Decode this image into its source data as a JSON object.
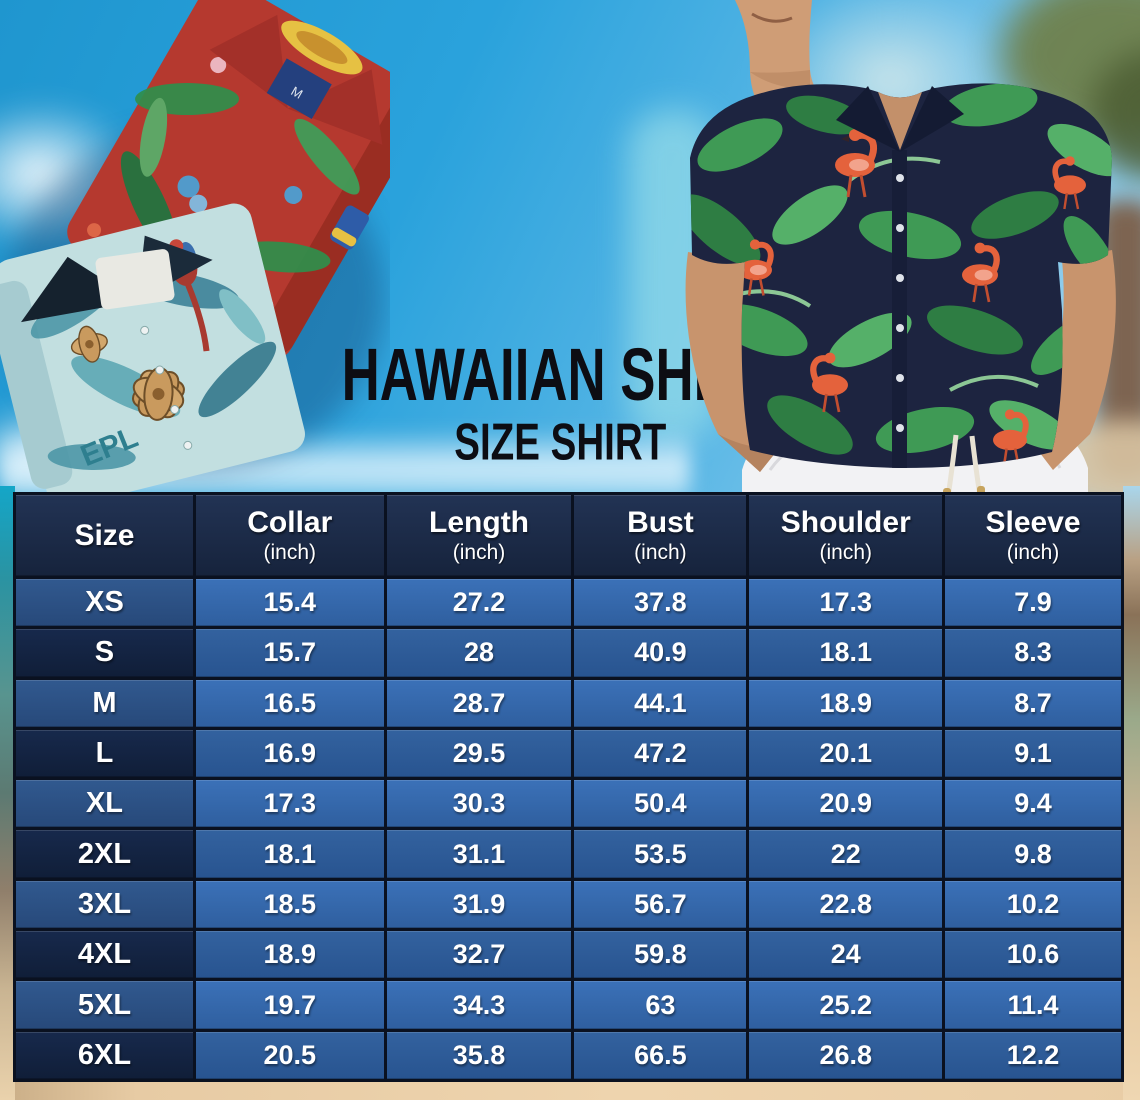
{
  "title": {
    "line1": "HAWAIIAN SHIRT",
    "line2": "SIZE SHIRT"
  },
  "size_table": {
    "columns": [
      {
        "label": "Size",
        "sub": ""
      },
      {
        "label": "Collar",
        "sub": "(inch)"
      },
      {
        "label": "Length",
        "sub": "(inch)"
      },
      {
        "label": "Bust",
        "sub": "(inch)"
      },
      {
        "label": "Shoulder",
        "sub": "(inch)"
      },
      {
        "label": "Sleeve",
        "sub": "(inch)"
      }
    ],
    "rows": [
      {
        "size": "XS",
        "values": [
          "15.4",
          "27.2",
          "37.8",
          "17.3",
          "7.9"
        ]
      },
      {
        "size": "S",
        "values": [
          "15.7",
          "28",
          "40.9",
          "18.1",
          "8.3"
        ]
      },
      {
        "size": "M",
        "values": [
          "16.5",
          "28.7",
          "44.1",
          "18.9",
          "8.7"
        ]
      },
      {
        "size": "L",
        "values": [
          "16.9",
          "29.5",
          "47.2",
          "20.1",
          "9.1"
        ]
      },
      {
        "size": "XL",
        "values": [
          "17.3",
          "30.3",
          "50.4",
          "20.9",
          "9.4"
        ]
      },
      {
        "size": "2XL",
        "values": [
          "18.1",
          "31.1",
          "53.5",
          "22",
          "9.8"
        ]
      },
      {
        "size": "3XL",
        "values": [
          "18.5",
          "31.9",
          "56.7",
          "22.8",
          "10.2"
        ]
      },
      {
        "size": "4XL",
        "values": [
          "18.9",
          "32.7",
          "59.8",
          "24",
          "10.6"
        ]
      },
      {
        "size": "5XL",
        "values": [
          "19.7",
          "34.3",
          "63",
          "25.2",
          "11.4"
        ]
      },
      {
        "size": "6XL",
        "values": [
          "20.5",
          "35.8",
          "66.5",
          "26.8",
          "12.2"
        ]
      }
    ]
  },
  "chart_data": {
    "type": "table",
    "title": "HAWAIIAN SHIRT SIZE SHIRT",
    "columns": [
      "Size",
      "Collar (inch)",
      "Length (inch)",
      "Bust (inch)",
      "Shoulder (inch)",
      "Sleeve (inch)"
    ],
    "rows": [
      [
        "XS",
        15.4,
        27.2,
        37.8,
        17.3,
        7.9
      ],
      [
        "S",
        15.7,
        28,
        40.9,
        18.1,
        8.3
      ],
      [
        "M",
        16.5,
        28.7,
        44.1,
        18.9,
        8.7
      ],
      [
        "L",
        16.9,
        29.5,
        47.2,
        20.1,
        9.1
      ],
      [
        "XL",
        17.3,
        30.3,
        50.4,
        20.9,
        9.4
      ],
      [
        "2XL",
        18.1,
        31.1,
        53.5,
        22,
        9.8
      ],
      [
        "3XL",
        18.5,
        31.9,
        56.7,
        22.8,
        10.2
      ],
      [
        "4XL",
        18.9,
        32.7,
        59.8,
        24,
        10.6
      ],
      [
        "5XL",
        19.7,
        34.3,
        63,
        25.2,
        11.4
      ],
      [
        "6XL",
        20.5,
        35.8,
        66.5,
        26.8,
        12.2
      ]
    ]
  },
  "colors": {
    "header_bg": "#1b2a44",
    "size_cell_odd": "#2b5185",
    "size_cell_even": "#132440",
    "value_cell_odd": "#346aae",
    "value_cell_even": "#2d5c9c",
    "table_border": "#0a1120",
    "title_text": "#0d0d13",
    "sky_blue": "#2aa2dc",
    "sand": "#ecd0a8",
    "shirt_navy": "#1d2440",
    "leaf_green": "#3f9a55",
    "flamingo_orange": "#e4623c",
    "red_shirt": "#b5392f",
    "teal_shirt": "#c2dfe0"
  },
  "decor": {
    "left_photo": "folded-hawaiian-shirts-photo",
    "right_photo": "man-wearing-flamingo-hawaiian-shirt-photo"
  }
}
